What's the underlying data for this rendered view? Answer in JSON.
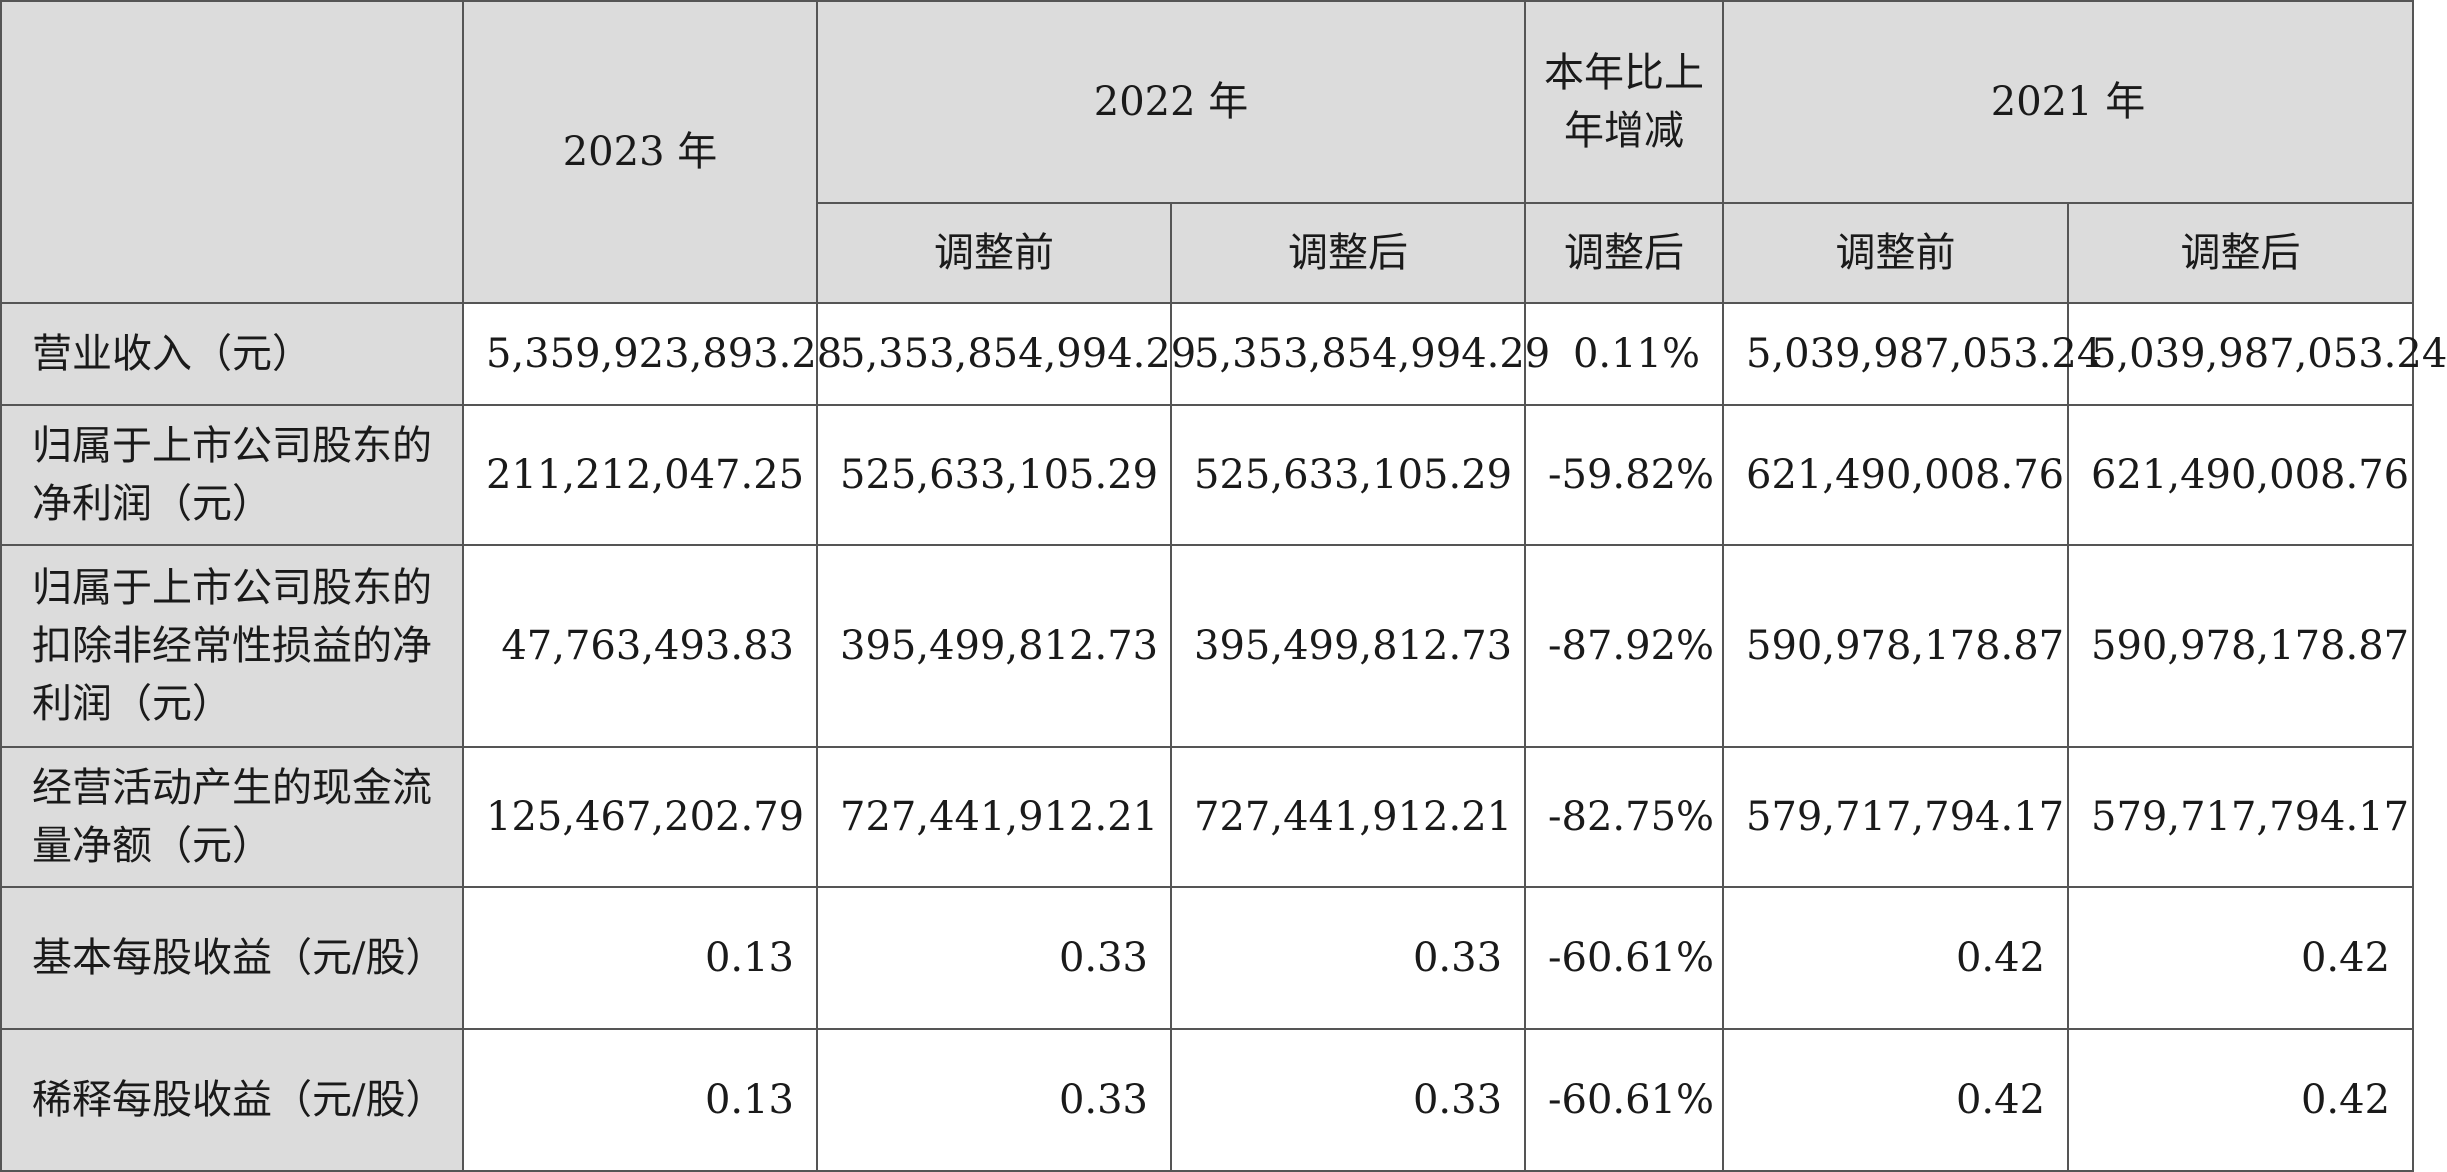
{
  "header": {
    "year_2023": "2023 年",
    "year_2022": "2022 年",
    "yoy_change": "本年比上年增减",
    "year_2021": "2021 年",
    "before_adjustment": "调整前",
    "after_adjustment": "调整后"
  },
  "rows": [
    {
      "label": "营业收入（元）",
      "v2023": "5,359,923,893.28",
      "v2022_before": "5,353,854,994.29",
      "v2022_after": "5,353,854,994.29",
      "change": "0.11%",
      "v2021_before": "5,039,987,053.24",
      "v2021_after": "5,039,987,053.24"
    },
    {
      "label": "归属于上市公司股东的净利润（元）",
      "v2023": "211,212,047.25",
      "v2022_before": "525,633,105.29",
      "v2022_after": "525,633,105.29",
      "change": "-59.82%",
      "v2021_before": "621,490,008.76",
      "v2021_after": "621,490,008.76"
    },
    {
      "label": "归属于上市公司股东的扣除非经常性损益的净利润（元）",
      "v2023": "47,763,493.83",
      "v2022_before": "395,499,812.73",
      "v2022_after": "395,499,812.73",
      "change": "-87.92%",
      "v2021_before": "590,978,178.87",
      "v2021_after": "590,978,178.87"
    },
    {
      "label": "经营活动产生的现金流量净额（元）",
      "v2023": "125,467,202.79",
      "v2022_before": "727,441,912.21",
      "v2022_after": "727,441,912.21",
      "change": "-82.75%",
      "v2021_before": "579,717,794.17",
      "v2021_after": "579,717,794.17"
    },
    {
      "label": "基本每股收益（元/股）",
      "v2023": "0.13",
      "v2022_before": "0.33",
      "v2022_after": "0.33",
      "change": "-60.61%",
      "v2021_before": "0.42",
      "v2021_after": "0.42"
    },
    {
      "label": "稀释每股收益（元/股）",
      "v2023": "0.13",
      "v2022_before": "0.33",
      "v2022_after": "0.33",
      "change": "-60.61%",
      "v2021_before": "0.42",
      "v2021_after": "0.42"
    }
  ]
}
